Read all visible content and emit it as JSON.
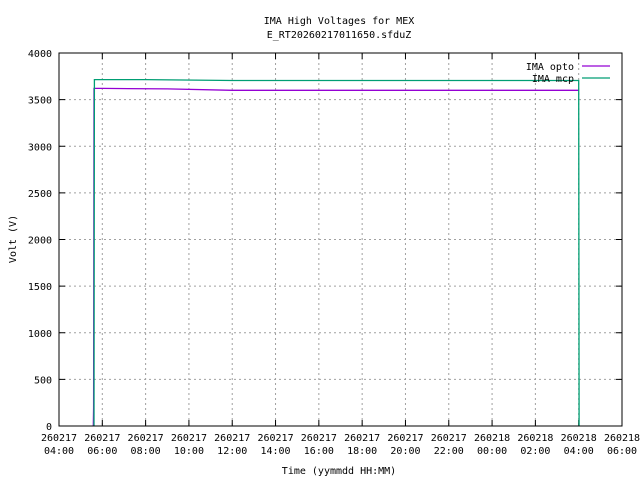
{
  "chart_data": {
    "type": "line",
    "title": "IMA High Voltages for MEX",
    "subtitle": "E_RT20260217011650.sfduZ",
    "xlabel": "Time (yymmdd HH:MM)",
    "ylabel": "Volt (V)",
    "x_ticks": [
      [
        "260217",
        "04:00"
      ],
      [
        "260217",
        "06:00"
      ],
      [
        "260217",
        "08:00"
      ],
      [
        "260217",
        "10:00"
      ],
      [
        "260217",
        "12:00"
      ],
      [
        "260217",
        "14:00"
      ],
      [
        "260217",
        "16:00"
      ],
      [
        "260217",
        "18:00"
      ],
      [
        "260217",
        "20:00"
      ],
      [
        "260217",
        "22:00"
      ],
      [
        "260218",
        "00:00"
      ],
      [
        "260218",
        "02:00"
      ],
      [
        "260218",
        "04:00"
      ],
      [
        "260218",
        "06:00"
      ]
    ],
    "x_range": [
      "2026-02-17 04:00",
      "2026-02-18 06:00"
    ],
    "y_ticks": [
      "0",
      "500",
      "1000",
      "1500",
      "2000",
      "2500",
      "3000",
      "3500",
      "4000"
    ],
    "ylim": [
      0,
      4000
    ],
    "grid": true,
    "legend_position": "top-right",
    "series": [
      {
        "name": "IMA opto",
        "color": "#9400d3",
        "x": [
          "2026-02-17 05:35",
          "2026-02-17 05:36",
          "2026-02-17 05:37",
          "2026-02-17 06:00",
          "2026-02-17 09:00",
          "2026-02-17 12:00",
          "2026-02-17 16:00",
          "2026-02-17 20:00",
          "2026-02-18 00:00",
          "2026-02-18 04:00"
        ],
        "values": [
          0,
          200,
          3620,
          3620,
          3615,
          3600,
          3600,
          3600,
          3600,
          3600
        ]
      },
      {
        "name": "IMA mcp",
        "color": "#009e73",
        "x": [
          "2026-02-17 05:37",
          "2026-02-17 05:38",
          "2026-02-17 08:00",
          "2026-02-17 12:00",
          "2026-02-17 16:00",
          "2026-02-17 20:00",
          "2026-02-18 00:00",
          "2026-02-18 04:00",
          "2026-02-18 04:01"
        ],
        "values": [
          0,
          3715,
          3715,
          3705,
          3705,
          3705,
          3705,
          3705,
          0
        ]
      }
    ]
  }
}
